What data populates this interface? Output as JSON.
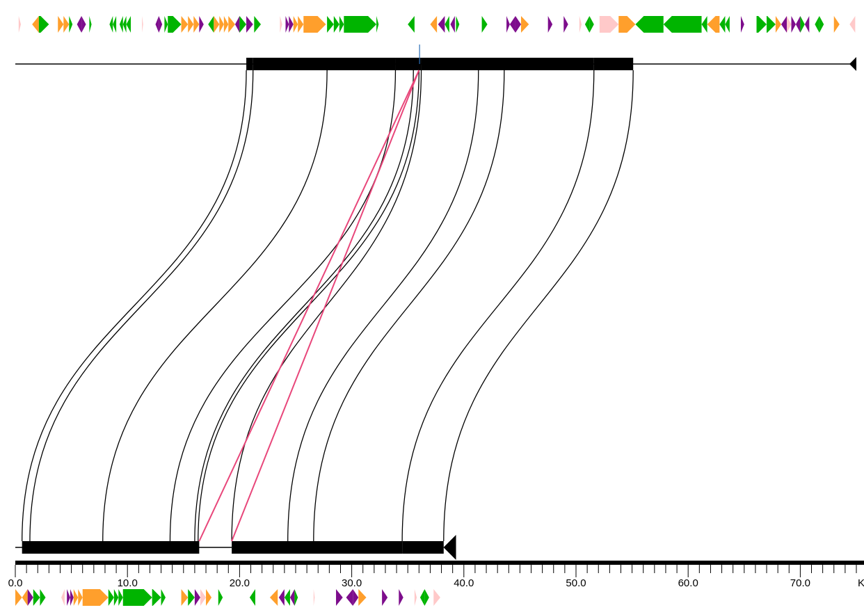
{
  "colors": {
    "green": "#00b400",
    "orange": "#ff9f2c",
    "purple": "#7d0d8c",
    "pink": "#ffc9c9",
    "black": "#000000",
    "crossLink": "#e8467a",
    "marker": "#2a6db5"
  },
  "scale": {
    "unit": "K",
    "tickLabels": [
      "0.0",
      "10.0",
      "20.0",
      "30.0",
      "40.0",
      "50.0",
      "60.0",
      "70.0"
    ],
    "tickValues": [
      0,
      10,
      20,
      30,
      40,
      50,
      60,
      70
    ],
    "minorStep": 1,
    "max": 75
  },
  "topGenome": {
    "length": 75,
    "blocks": [
      {
        "start": 20.6,
        "end": 21.2
      },
      {
        "start": 21.2,
        "end": 33.9
      },
      {
        "start": 33.9,
        "end": 36.2
      },
      {
        "start": 36.2,
        "end": 51.6
      },
      {
        "start": 51.6,
        "end": 55.1
      }
    ]
  },
  "bottomGenome": {
    "length": 39.3,
    "blocks": [
      {
        "start": 0.6,
        "end": 16.4
      },
      {
        "start": 19.3,
        "end": 34.5
      },
      {
        "start": 34.5,
        "end": 38.2
      }
    ]
  },
  "links": [
    {
      "top": 20.6,
      "bottom": 0.6
    },
    {
      "top": 21.2,
      "bottom": 1.3
    },
    {
      "top": 27.8,
      "bottom": 7.8
    },
    {
      "top": 33.9,
      "bottom": 13.8
    },
    {
      "top": 35.5,
      "bottom": 16.0
    },
    {
      "top": 36.0,
      "bottom": 16.3
    },
    {
      "top": 36.2,
      "bottom": 19.3
    },
    {
      "top": 41.3,
      "bottom": 24.3
    },
    {
      "top": 43.6,
      "bottom": 26.6
    },
    {
      "top": 51.6,
      "bottom": 34.5
    },
    {
      "top": 55.1,
      "bottom": 38.2
    }
  ],
  "crossLinks": [
    {
      "top": 36.0,
      "bottom": 16.4
    },
    {
      "top": 36.0,
      "bottom": 19.3
    }
  ],
  "topGenes": [
    {
      "start": 0.3,
      "end": 0.5,
      "strand": 1,
      "color": "pink"
    },
    {
      "start": 1.5,
      "end": 2.1,
      "strand": -1,
      "color": "orange"
    },
    {
      "start": 2.1,
      "end": 3.0,
      "strand": 1,
      "color": "green"
    },
    {
      "start": 3.8,
      "end": 4.3,
      "strand": 1,
      "color": "orange"
    },
    {
      "start": 4.3,
      "end": 4.8,
      "strand": 1,
      "color": "orange"
    },
    {
      "start": 4.8,
      "end": 5.1,
      "strand": 1,
      "color": "green"
    },
    {
      "start": 5.5,
      "end": 5.9,
      "strand": -1,
      "color": "purple"
    },
    {
      "start": 5.9,
      "end": 6.3,
      "strand": 1,
      "color": "purple"
    },
    {
      "start": 6.6,
      "end": 6.8,
      "strand": 1,
      "color": "green"
    },
    {
      "start": 8.4,
      "end": 8.7,
      "strand": -1,
      "color": "green"
    },
    {
      "start": 8.7,
      "end": 9.0,
      "strand": -1,
      "color": "green"
    },
    {
      "start": 9.3,
      "end": 9.6,
      "strand": -1,
      "color": "green"
    },
    {
      "start": 9.6,
      "end": 9.9,
      "strand": -1,
      "color": "green"
    },
    {
      "start": 9.9,
      "end": 10.3,
      "strand": -1,
      "color": "green"
    },
    {
      "start": 11.3,
      "end": 11.4,
      "strand": 1,
      "color": "pink"
    },
    {
      "start": 12.5,
      "end": 12.8,
      "strand": -1,
      "color": "purple"
    },
    {
      "start": 12.8,
      "end": 13.1,
      "strand": 1,
      "color": "purple"
    },
    {
      "start": 13.3,
      "end": 13.6,
      "strand": 1,
      "color": "green"
    },
    {
      "start": 13.6,
      "end": 14.8,
      "strand": 1,
      "color": "green"
    },
    {
      "start": 14.8,
      "end": 15.4,
      "strand": 1,
      "color": "orange"
    },
    {
      "start": 15.4,
      "end": 15.9,
      "strand": 1,
      "color": "orange"
    },
    {
      "start": 15.9,
      "end": 16.4,
      "strand": 1,
      "color": "orange"
    },
    {
      "start": 16.4,
      "end": 16.8,
      "strand": 1,
      "color": "purple"
    },
    {
      "start": 17.2,
      "end": 17.7,
      "strand": -1,
      "color": "green"
    },
    {
      "start": 17.7,
      "end": 18.2,
      "strand": 1,
      "color": "orange"
    },
    {
      "start": 18.2,
      "end": 18.6,
      "strand": 1,
      "color": "orange"
    },
    {
      "start": 18.6,
      "end": 19.0,
      "strand": 1,
      "color": "orange"
    },
    {
      "start": 19.0,
      "end": 19.6,
      "strand": 1,
      "color": "orange"
    },
    {
      "start": 19.6,
      "end": 20.0,
      "strand": -1,
      "color": "purple"
    },
    {
      "start": 20.0,
      "end": 20.6,
      "strand": 1,
      "color": "green"
    },
    {
      "start": 20.6,
      "end": 21.2,
      "strand": 1,
      "color": "purple"
    },
    {
      "start": 21.3,
      "end": 21.9,
      "strand": 1,
      "color": "green"
    },
    {
      "start": 23.6,
      "end": 23.8,
      "strand": 1,
      "color": "pink"
    },
    {
      "start": 24.1,
      "end": 24.4,
      "strand": 1,
      "color": "purple"
    },
    {
      "start": 24.4,
      "end": 24.8,
      "strand": 1,
      "color": "purple"
    },
    {
      "start": 24.8,
      "end": 25.2,
      "strand": 1,
      "color": "orange"
    },
    {
      "start": 25.2,
      "end": 25.7,
      "strand": 1,
      "color": "orange"
    },
    {
      "start": 25.7,
      "end": 27.7,
      "strand": 1,
      "color": "orange"
    },
    {
      "start": 27.8,
      "end": 28.4,
      "strand": 1,
      "color": "green"
    },
    {
      "start": 28.4,
      "end": 28.9,
      "strand": 1,
      "color": "green"
    },
    {
      "start": 28.9,
      "end": 29.3,
      "strand": 1,
      "color": "green"
    },
    {
      "start": 29.3,
      "end": 32.2,
      "strand": 1,
      "color": "green"
    },
    {
      "start": 32.2,
      "end": 32.4,
      "strand": 1,
      "color": "green"
    },
    {
      "start": 35.0,
      "end": 35.6,
      "strand": -1,
      "color": "green"
    },
    {
      "start": 37.0,
      "end": 37.6,
      "strand": -1,
      "color": "orange"
    },
    {
      "start": 37.7,
      "end": 38.3,
      "strand": -1,
      "color": "purple"
    },
    {
      "start": 38.3,
      "end": 38.7,
      "strand": -1,
      "color": "green"
    },
    {
      "start": 38.8,
      "end": 39.2,
      "strand": -1,
      "color": "purple"
    },
    {
      "start": 39.3,
      "end": 39.6,
      "strand": 1,
      "color": "green"
    },
    {
      "start": 41.6,
      "end": 42.1,
      "strand": 1,
      "color": "green"
    },
    {
      "start": 43.8,
      "end": 44.1,
      "strand": 1,
      "color": "purple"
    },
    {
      "start": 44.1,
      "end": 44.6,
      "strand": -1,
      "color": "purple"
    },
    {
      "start": 44.6,
      "end": 45.1,
      "strand": 1,
      "color": "purple"
    },
    {
      "start": 45.1,
      "end": 45.8,
      "strand": 1,
      "color": "orange"
    },
    {
      "start": 47.5,
      "end": 47.9,
      "strand": 1,
      "color": "purple"
    },
    {
      "start": 48.9,
      "end": 49.3,
      "strand": 1,
      "color": "purple"
    },
    {
      "start": 50.3,
      "end": 50.5,
      "strand": 1,
      "color": "pink"
    },
    {
      "start": 50.8,
      "end": 51.2,
      "strand": -1,
      "color": "green"
    },
    {
      "start": 51.2,
      "end": 51.6,
      "strand": 1,
      "color": "green"
    },
    {
      "start": 52.1,
      "end": 53.8,
      "strand": 1,
      "color": "pink"
    },
    {
      "start": 53.8,
      "end": 55.3,
      "strand": 1,
      "color": "orange"
    },
    {
      "start": 55.3,
      "end": 57.8,
      "strand": -1,
      "color": "green"
    },
    {
      "start": 57.8,
      "end": 61.2,
      "strand": -1,
      "color": "green"
    },
    {
      "start": 61.2,
      "end": 61.7,
      "strand": -1,
      "color": "green"
    },
    {
      "start": 61.7,
      "end": 62.8,
      "strand": -1,
      "color": "orange"
    },
    {
      "start": 62.8,
      "end": 63.3,
      "strand": -1,
      "color": "green"
    },
    {
      "start": 63.3,
      "end": 63.7,
      "strand": -1,
      "color": "green"
    },
    {
      "start": 64.7,
      "end": 65.0,
      "strand": 1,
      "color": "purple"
    },
    {
      "start": 66.1,
      "end": 67.0,
      "strand": 1,
      "color": "green"
    },
    {
      "start": 67.0,
      "end": 67.8,
      "strand": 1,
      "color": "green"
    },
    {
      "start": 67.8,
      "end": 68.3,
      "strand": 1,
      "color": "orange"
    },
    {
      "start": 68.3,
      "end": 68.8,
      "strand": -1,
      "color": "purple"
    },
    {
      "start": 68.8,
      "end": 69.2,
      "strand": 1,
      "color": "pink"
    },
    {
      "start": 69.2,
      "end": 69.6,
      "strand": 1,
      "color": "purple"
    },
    {
      "start": 69.6,
      "end": 70.0,
      "strand": -1,
      "color": "purple"
    },
    {
      "start": 70.0,
      "end": 70.4,
      "strand": 1,
      "color": "green"
    },
    {
      "start": 70.4,
      "end": 70.8,
      "strand": -1,
      "color": "purple"
    },
    {
      "start": 71.3,
      "end": 71.7,
      "strand": -1,
      "color": "green"
    },
    {
      "start": 71.7,
      "end": 72.1,
      "strand": 1,
      "color": "green"
    },
    {
      "start": 73.0,
      "end": 73.5,
      "strand": 1,
      "color": "orange"
    },
    {
      "start": 74.4,
      "end": 74.9,
      "strand": -1,
      "color": "pink"
    }
  ],
  "bottomGenes": [
    {
      "start": 0.0,
      "end": 0.6,
      "strand": 1,
      "color": "orange"
    },
    {
      "start": 0.6,
      "end": 1.1,
      "strand": -1,
      "color": "orange"
    },
    {
      "start": 1.1,
      "end": 1.6,
      "strand": 1,
      "color": "purple"
    },
    {
      "start": 1.6,
      "end": 2.2,
      "strand": 1,
      "color": "green"
    },
    {
      "start": 2.2,
      "end": 2.7,
      "strand": 1,
      "color": "green"
    },
    {
      "start": 4.1,
      "end": 4.4,
      "strand": -1,
      "color": "pink"
    },
    {
      "start": 4.6,
      "end": 4.9,
      "strand": 1,
      "color": "purple"
    },
    {
      "start": 4.9,
      "end": 5.2,
      "strand": 1,
      "color": "purple"
    },
    {
      "start": 5.2,
      "end": 5.6,
      "strand": 1,
      "color": "orange"
    },
    {
      "start": 5.6,
      "end": 6.0,
      "strand": 1,
      "color": "orange"
    },
    {
      "start": 6.0,
      "end": 8.3,
      "strand": 1,
      "color": "orange"
    },
    {
      "start": 8.3,
      "end": 8.8,
      "strand": 1,
      "color": "green"
    },
    {
      "start": 8.8,
      "end": 9.2,
      "strand": 1,
      "color": "green"
    },
    {
      "start": 9.2,
      "end": 9.6,
      "strand": 1,
      "color": "green"
    },
    {
      "start": 9.6,
      "end": 12.2,
      "strand": 1,
      "color": "green"
    },
    {
      "start": 12.2,
      "end": 13.0,
      "strand": 1,
      "color": "green"
    },
    {
      "start": 13.0,
      "end": 13.4,
      "strand": 1,
      "color": "green"
    },
    {
      "start": 14.8,
      "end": 15.4,
      "strand": 1,
      "color": "orange"
    },
    {
      "start": 15.4,
      "end": 16.0,
      "strand": 1,
      "color": "green"
    },
    {
      "start": 16.0,
      "end": 16.5,
      "strand": 1,
      "color": "purple"
    },
    {
      "start": 16.5,
      "end": 17.0,
      "strand": 1,
      "color": "pink"
    },
    {
      "start": 17.0,
      "end": 17.5,
      "strand": 1,
      "color": "orange"
    },
    {
      "start": 18.1,
      "end": 18.5,
      "strand": 1,
      "color": "green"
    },
    {
      "start": 20.9,
      "end": 21.4,
      "strand": -1,
      "color": "green"
    },
    {
      "start": 22.7,
      "end": 23.4,
      "strand": -1,
      "color": "orange"
    },
    {
      "start": 23.5,
      "end": 24.0,
      "strand": -1,
      "color": "purple"
    },
    {
      "start": 24.0,
      "end": 24.5,
      "strand": -1,
      "color": "green"
    },
    {
      "start": 24.5,
      "end": 24.9,
      "strand": -1,
      "color": "purple"
    },
    {
      "start": 24.9,
      "end": 25.2,
      "strand": 1,
      "color": "green"
    },
    {
      "start": 26.6,
      "end": 26.7,
      "strand": 1,
      "color": "pink"
    },
    {
      "start": 28.6,
      "end": 29.2,
      "strand": 1,
      "color": "purple"
    },
    {
      "start": 29.5,
      "end": 30.1,
      "strand": -1,
      "color": "purple"
    },
    {
      "start": 30.1,
      "end": 30.6,
      "strand": 1,
      "color": "purple"
    },
    {
      "start": 30.6,
      "end": 31.3,
      "strand": 1,
      "color": "orange"
    },
    {
      "start": 32.7,
      "end": 33.2,
      "strand": 1,
      "color": "purple"
    },
    {
      "start": 34.2,
      "end": 34.6,
      "strand": 1,
      "color": "purple"
    },
    {
      "start": 35.6,
      "end": 35.8,
      "strand": 1,
      "color": "pink"
    },
    {
      "start": 36.1,
      "end": 36.5,
      "strand": -1,
      "color": "green"
    },
    {
      "start": 36.5,
      "end": 36.9,
      "strand": 1,
      "color": "green"
    },
    {
      "start": 37.3,
      "end": 37.9,
      "strand": 1,
      "color": "pink"
    }
  ]
}
